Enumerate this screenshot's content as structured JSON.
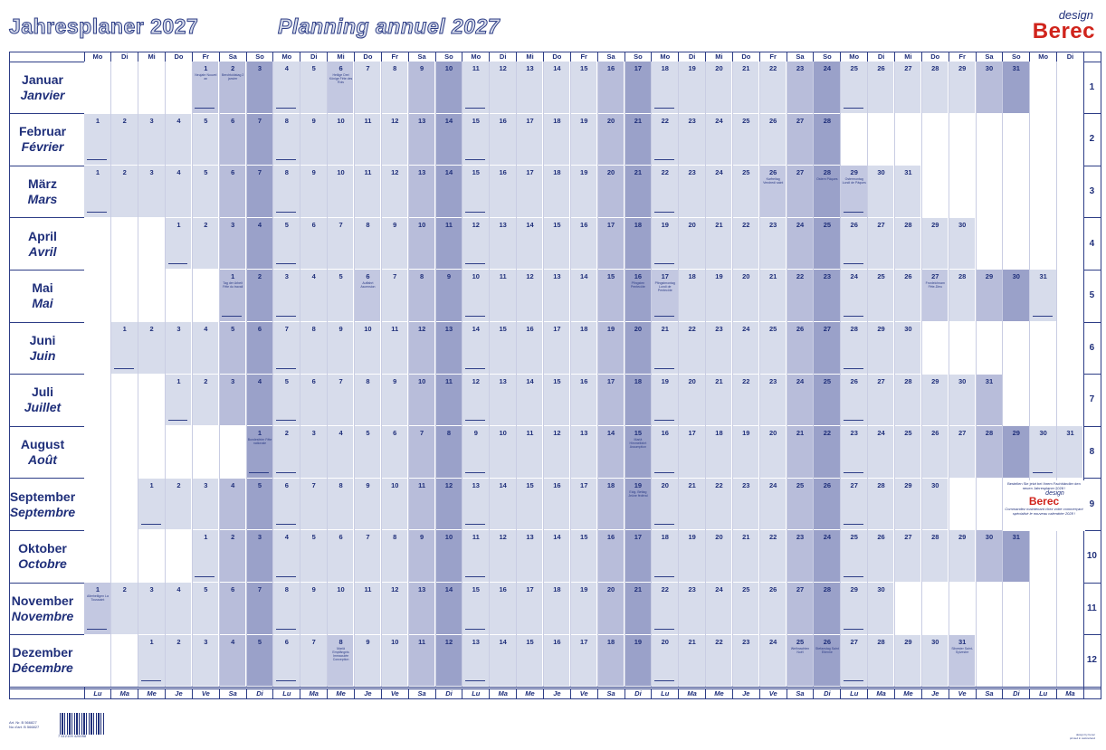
{
  "title_de": "Jahresplaner 2027",
  "title_fr": "Planning annuel 2027",
  "brand": {
    "small": "design",
    "big": "Berec"
  },
  "colors": {
    "weekday": "#d7dceb",
    "saturday": "#b8bdda",
    "sunday": "#9aa1c9",
    "holiday": "#c3c8e1",
    "empty": "#ffffff",
    "text": "#1f2f7a",
    "line": "#2d3d86"
  },
  "year": 2027,
  "columns": 37,
  "weekday_headers_de": [
    "Mo",
    "Di",
    "Mi",
    "Do",
    "Fr",
    "Sa",
    "So"
  ],
  "weekday_headers_fr": [
    "Lu",
    "Ma",
    "Me",
    "Je",
    "Ve",
    "Sa",
    "Di"
  ],
  "months": [
    {
      "de": "Januar",
      "fr": "Janvier",
      "num": "1",
      "offset": 4,
      "days": 31
    },
    {
      "de": "Februar",
      "fr": "Février",
      "num": "2",
      "offset": 0,
      "days": 28
    },
    {
      "de": "März",
      "fr": "Mars",
      "num": "3",
      "offset": 0,
      "days": 31
    },
    {
      "de": "April",
      "fr": "Avril",
      "num": "4",
      "offset": 3,
      "days": 30
    },
    {
      "de": "Mai",
      "fr": "Mai",
      "num": "5",
      "offset": 5,
      "days": 31
    },
    {
      "de": "Juni",
      "fr": "Juin",
      "num": "6",
      "offset": 1,
      "days": 30
    },
    {
      "de": "Juli",
      "fr": "Juillet",
      "num": "7",
      "offset": 3,
      "days": 31
    },
    {
      "de": "August",
      "fr": "Août",
      "num": "8",
      "offset": 6,
      "days": 31
    },
    {
      "de": "September",
      "fr": "Septembre",
      "num": "9",
      "offset": 2,
      "days": 30
    },
    {
      "de": "Oktober",
      "fr": "Octobre",
      "num": "10",
      "offset": 4,
      "days": 31
    },
    {
      "de": "November",
      "fr": "Novembre",
      "num": "11",
      "offset": 0,
      "days": 30
    },
    {
      "de": "Dezember",
      "fr": "Décembre",
      "num": "12",
      "offset": 2,
      "days": 31
    }
  ],
  "holidays": [
    {
      "month": 1,
      "day": 1,
      "text": "Neujahr Nouvel an"
    },
    {
      "month": 1,
      "day": 2,
      "text": "Berchtoldstag 2 janvier"
    },
    {
      "month": 1,
      "day": 6,
      "text": "Heilige Drei Könige Fête des Rois"
    },
    {
      "month": 3,
      "day": 26,
      "text": "Karfreitag Vendredi saint"
    },
    {
      "month": 3,
      "day": 28,
      "text": "Ostern Pâques"
    },
    {
      "month": 3,
      "day": 29,
      "text": "Ostermontag Lundi de Pâques"
    },
    {
      "month": 5,
      "day": 1,
      "text": "Tag der Arbeit Fête du travail"
    },
    {
      "month": 5,
      "day": 6,
      "text": "Auffahrt Ascension"
    },
    {
      "month": 5,
      "day": 16,
      "text": "Pfingsten Pentecôte"
    },
    {
      "month": 5,
      "day": 17,
      "text": "Pfingstmontag Lundi de Pentecôte"
    },
    {
      "month": 5,
      "day": 27,
      "text": "Fronleichnam Fête-Dieu"
    },
    {
      "month": 8,
      "day": 1,
      "text": "Bundesfeier Fête nationale"
    },
    {
      "month": 8,
      "day": 15,
      "text": "Mariä Himmelfahrt Assomption"
    },
    {
      "month": 9,
      "day": 19,
      "text": "Eidg. Bettag Jeûne fédéral"
    },
    {
      "month": 11,
      "day": 1,
      "text": "Allerheiligen La Toussaint"
    },
    {
      "month": 12,
      "day": 8,
      "text": "Mariä Empfängnis Immaculée Conception"
    },
    {
      "month": 12,
      "day": 25,
      "text": "Weihnachten Noël"
    },
    {
      "month": 12,
      "day": 26,
      "text": "Stefanstag Saint Etienne"
    },
    {
      "month": 12,
      "day": 31,
      "text": "Silvester Saint-Sylvestre"
    }
  ],
  "promo": {
    "line1": "Bestellen Sie jetzt bei Ihrem Fachhändler den neuen Jahresplaner 2028 !",
    "logo_small": "design",
    "logo_big": "Berec",
    "line2": "Commandez maintenant chez votre commerçant spécialisé le nouveau calendrier 2028 !"
  },
  "footer": {
    "art_de": "Art. Nr. B 566827",
    "art_fr": "No d'art. B 566827",
    "barcode_number": "7 612109 426058",
    "right_line1": "design by berec",
    "right_line2": "printed in switzerland"
  }
}
